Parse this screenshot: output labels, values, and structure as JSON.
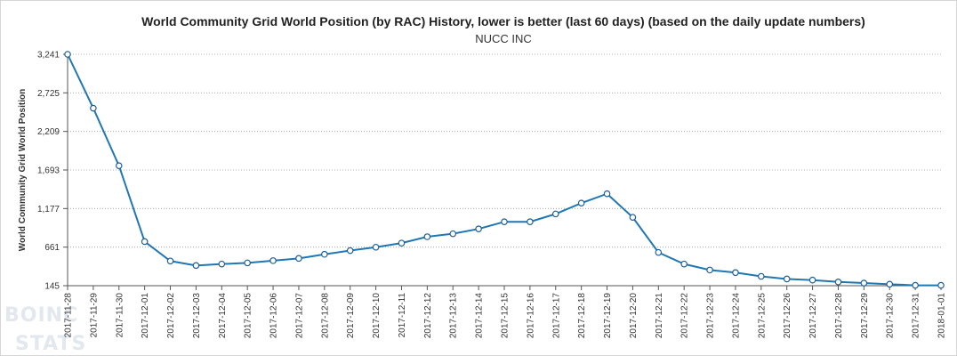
{
  "chart_data": {
    "type": "line",
    "title": "World Community Grid World Position (by RAC) History, lower is better (last 60 days) (based on the daily update numbers)",
    "subtitle": "NUCC INC",
    "ylabel": "World Community Grid World Position",
    "xlabel": "",
    "ylim": [
      145,
      3241
    ],
    "yticks": [
      "145",
      "661",
      "1,177",
      "1,693",
      "2,209",
      "2,725",
      "3,241"
    ],
    "ytick_values": [
      145,
      661,
      1177,
      1693,
      2209,
      2725,
      3241
    ],
    "grid": true,
    "legend": "none",
    "line_color": "#1f77b4",
    "categories": [
      "2017-11-28",
      "2017-11-29",
      "2017-11-30",
      "2017-12-01",
      "2017-12-02",
      "2017-12-03",
      "2017-12-04",
      "2017-12-05",
      "2017-12-06",
      "2017-12-07",
      "2017-12-08",
      "2017-12-09",
      "2017-12-10",
      "2017-12-11",
      "2017-12-12",
      "2017-12-13",
      "2017-12-14",
      "2017-12-15",
      "2017-12-16",
      "2017-12-17",
      "2017-12-18",
      "2017-12-19",
      "2017-12-20",
      "2017-12-21",
      "2017-12-22",
      "2017-12-23",
      "2017-12-24",
      "2017-12-25",
      "2017-12-26",
      "2017-12-27",
      "2017-12-28",
      "2017-12-29",
      "2017-12-30",
      "2017-12-31",
      "2018-01-01"
    ],
    "values": [
      3241,
      2520,
      1750,
      735,
      475,
      415,
      435,
      450,
      480,
      510,
      565,
      615,
      660,
      715,
      800,
      840,
      905,
      1000,
      1000,
      1105,
      1250,
      1375,
      1060,
      590,
      435,
      355,
      320,
      270,
      235,
      220,
      195,
      180,
      165,
      150,
      150
    ]
  },
  "watermark": "BOINC STATS"
}
